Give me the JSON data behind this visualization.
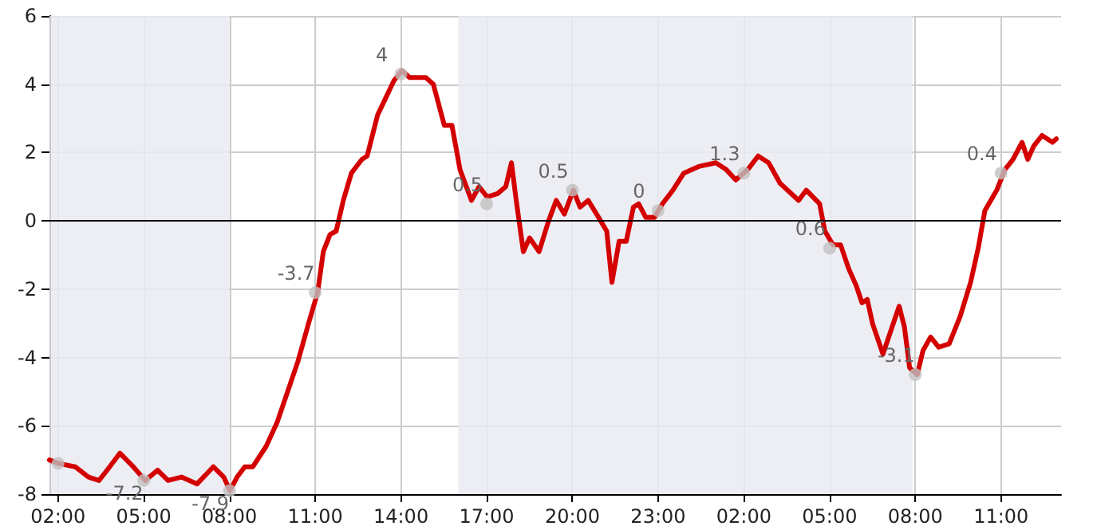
{
  "chart_data": {
    "type": "line",
    "xlim": [
      "--01-01T01:42",
      "--01-02T13:06"
    ],
    "xticks": [
      {
        "value": "--01-01T02:00",
        "label": "02:00"
      },
      {
        "value": "--01-01T05:00",
        "label": "05:00"
      },
      {
        "value": "--01-01T08:00",
        "label": "08:00"
      },
      {
        "value": "--01-01T11:00",
        "label": "11:00"
      },
      {
        "value": "--01-01T14:00",
        "label": "14:00"
      },
      {
        "value": "--01-01T17:00",
        "label": "17:00"
      },
      {
        "value": "--01-01T20:00",
        "label": "20:00"
      },
      {
        "value": "--01-01T23:00",
        "label": "23:00"
      },
      {
        "value": "--01-02T02:00",
        "label": "02:00"
      },
      {
        "value": "--01-02T05:00",
        "label": "05:00"
      },
      {
        "value": "--01-02T08:00",
        "label": "08:00"
      },
      {
        "value": "--01-02T11:00",
        "label": "11:00"
      }
    ],
    "ylim": [
      -8,
      6
    ],
    "yticks": [
      -8,
      -6,
      -4,
      -2,
      0,
      2,
      4,
      6
    ],
    "grid": true,
    "series": [
      {
        "color": "#d40000",
        "marker": "none",
        "line_style": "solid",
        "x": [
          "--01-01T01:42",
          "--01-01T02:00",
          "--01-01T02:36",
          "--01-01T03:04",
          "--01-01T03:26",
          "--01-01T03:43",
          "--01-01T04:10",
          "--01-01T04:38",
          "--01-01T05:03",
          "--01-01T05:29",
          "--01-01T05:51",
          "--01-01T06:19",
          "--01-01T06:52",
          "--01-01T07:26",
          "--01-01T07:48",
          "--01-01T08:01",
          "--01-01T08:16",
          "--01-01T08:32",
          "--01-01T08:49",
          "--01-01T09:17",
          "--01-01T09:40",
          "--01-01T10:02",
          "--01-01T10:24",
          "--01-01T10:46",
          "--01-01T11:05",
          "--01-01T11:17",
          "--01-01T11:31",
          "--01-01T11:44",
          "--01-01T11:59",
          "--01-01T12:16",
          "--01-01T12:38",
          "--01-01T12:49",
          "--01-01T13:11",
          "--01-01T13:28",
          "--01-01T13:45",
          "--01-01T14:02",
          "--01-01T14:18",
          "--01-01T14:52",
          "--01-01T15:08",
          "--01-01T15:31",
          "--01-01T15:47",
          "--01-01T16:04",
          "--01-01T16:28",
          "--01-01T16:44",
          "--01-01T17:01",
          "--01-01T17:23",
          "--01-01T17:40",
          "--01-01T17:52",
          "--01-01T18:02",
          "--01-01T18:17",
          "--01-01T18:30",
          "--01-01T18:50",
          "--01-01T19:10",
          "--01-01T19:26",
          "--01-01T19:43",
          "--01-01T20:02",
          "--01-01T20:16",
          "--01-01T20:33",
          "--01-01T20:55",
          "--01-01T21:12",
          "--01-01T21:23",
          "--01-01T21:38",
          "--01-01T21:53",
          "--01-01T22:08",
          "--01-01T22:19",
          "--01-01T22:34",
          "--01-01T22:52",
          "--01-01T23:09",
          "--01-01T23:31",
          "--01-01T23:54",
          "--01-02T00:27",
          "--01-02T01:01",
          "--01-02T01:23",
          "--01-02T01:43",
          "--01-02T02:08",
          "--01-02T02:30",
          "--01-02T02:52",
          "--01-02T03:16",
          "--01-02T03:55",
          "--01-02T04:11",
          "--01-02T04:39",
          "--01-02T04:50",
          "--01-02T05:07",
          "--01-02T05:23",
          "--01-02T05:40",
          "--01-02T05:56",
          "--01-02T06:08",
          "--01-02T06:19",
          "--01-02T06:30",
          "--01-02T06:52",
          "--01-02T07:09",
          "--01-02T07:26",
          "--01-02T07:37",
          "--01-02T07:48",
          "--01-02T08:04",
          "--01-02T08:16",
          "--01-02T08:32",
          "--01-02T08:49",
          "--01-02T09:11",
          "--01-02T09:34",
          "--01-02T09:56",
          "--01-02T10:12",
          "--01-02T10:26",
          "--01-02T10:51",
          "--01-02T11:08",
          "--01-02T11:25",
          "--01-02T11:44",
          "--01-02T11:56",
          "--01-02T12:09",
          "--01-02T12:26",
          "--01-02T12:48",
          "--01-02T12:56"
        ],
        "values": [
          -7.0,
          -7.1,
          -7.2,
          -7.5,
          -7.6,
          -7.3,
          -6.8,
          -7.2,
          -7.6,
          -7.3,
          -7.6,
          -7.5,
          -7.7,
          -7.2,
          -7.5,
          -7.9,
          -7.5,
          -7.2,
          -7.2,
          -6.6,
          -5.9,
          -5.0,
          -4.1,
          -3.0,
          -2.1,
          -0.9,
          -0.4,
          -0.3,
          0.6,
          1.4,
          1.8,
          1.9,
          3.1,
          3.6,
          4.1,
          4.4,
          4.2,
          4.2,
          4.0,
          2.8,
          2.8,
          1.5,
          0.6,
          1.0,
          0.7,
          0.8,
          1.0,
          1.7,
          0.6,
          -0.9,
          -0.5,
          -0.9,
          0.0,
          0.6,
          0.2,
          0.9,
          0.4,
          0.6,
          0.1,
          -0.3,
          -1.8,
          -0.6,
          -0.6,
          0.4,
          0.5,
          0.1,
          0.1,
          0.5,
          0.9,
          1.4,
          1.6,
          1.7,
          1.5,
          1.2,
          1.5,
          1.9,
          1.7,
          1.1,
          0.6,
          0.9,
          0.5,
          -0.3,
          -0.7,
          -0.7,
          -1.4,
          -1.9,
          -2.4,
          -2.3,
          -3.0,
          -3.9,
          -3.2,
          -2.5,
          -3.1,
          -4.3,
          -4.5,
          -3.8,
          -3.4,
          -3.7,
          -3.6,
          -2.8,
          -1.8,
          -0.8,
          0.3,
          0.9,
          1.5,
          1.8,
          2.3,
          1.8,
          2.2,
          2.5,
          2.3,
          2.4
        ]
      },
      {
        "type": "scatter",
        "color": "#c0c0c0",
        "marker": "circle",
        "x": [
          "--01-01T02:00",
          "--01-01T05:00",
          "--01-01T08:00",
          "--01-01T11:00",
          "--01-01T14:00",
          "--01-01T17:00",
          "--01-01T20:00",
          "--01-01T23:00",
          "--01-02T02:00",
          "--01-02T05:00",
          "--01-02T08:00",
          "--01-02T11:00"
        ],
        "values": [
          -7.1,
          -7.6,
          -7.9,
          -2.1,
          4.3,
          0.5,
          0.9,
          0.3,
          1.4,
          -0.8,
          -4.5,
          1.4
        ]
      }
    ],
    "annotations": [
      {
        "text": "-7.2",
        "x": "--01-01T05:00",
        "y": -7.6
      },
      {
        "text": "-7.9",
        "x": "--01-01T08:00",
        "y": -7.9
      },
      {
        "text": "-3.7",
        "x": "--01-01T11:00",
        "y": -2.1
      },
      {
        "text": "4",
        "x": "--01-01T14:00",
        "y": 4.3
      },
      {
        "text": "0.5",
        "x": "--01-01T17:00",
        "y": 0.5
      },
      {
        "text": "0.5",
        "x": "--01-01T20:00",
        "y": 0.9
      },
      {
        "text": "0",
        "x": "--01-01T23:00",
        "y": 0.3
      },
      {
        "text": "1.3",
        "x": "--01-02T02:00",
        "y": 1.4
      },
      {
        "text": "0.6",
        "x": "--01-02T05:00",
        "y": -0.8
      },
      {
        "text": "-3.1",
        "x": "--01-02T08:00",
        "y": -4.5
      },
      {
        "text": "0.4",
        "x": "--01-02T11:00",
        "y": 1.4
      }
    ],
    "bands": [
      {
        "axis": "x",
        "from": "--01-01T01:42",
        "to": "--01-01T08:00",
        "color": "#eaeaf2"
      },
      {
        "axis": "x",
        "from": "--01-01T16:00",
        "to": "--01-02T07:54",
        "color": "#eaeaf2"
      }
    ],
    "ref_lines": [
      {
        "axis": "y",
        "value": 0,
        "color": "#000000"
      }
    ]
  }
}
